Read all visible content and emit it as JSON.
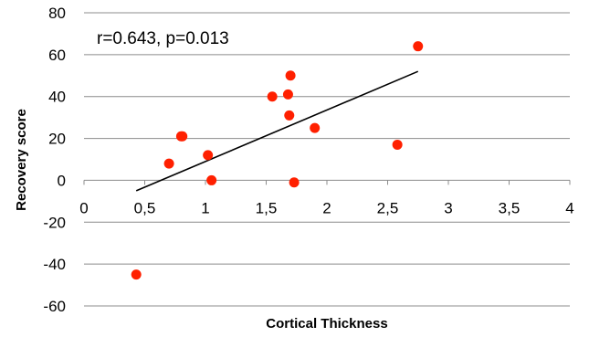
{
  "chart_data": {
    "type": "scatter",
    "title": "",
    "annotation": "r=0.643, p=0.013",
    "xlabel": "Cortical Thickness",
    "ylabel": "Recovery score",
    "xlim": [
      0,
      4
    ],
    "ylim": [
      -60,
      80
    ],
    "x_ticks": [
      0,
      0.5,
      1,
      1.5,
      2,
      2.5,
      3,
      3.5,
      4
    ],
    "x_tick_labels": [
      "0",
      "0,5",
      "1",
      "1,5",
      "2",
      "2,5",
      "3",
      "3,5",
      "4"
    ],
    "y_ticks": [
      -60,
      -40,
      -20,
      0,
      20,
      40,
      60,
      80
    ],
    "y_tick_labels": [
      "-60",
      "-40",
      "-20",
      "0",
      "20",
      "40",
      "60",
      "80"
    ],
    "grid": "horizontal",
    "legend": "none",
    "point_color": "#ff2000",
    "trendline_color": "#000000",
    "points": [
      {
        "x": 0.43,
        "y": -45
      },
      {
        "x": 0.7,
        "y": 8
      },
      {
        "x": 0.8,
        "y": 21
      },
      {
        "x": 0.81,
        "y": 21
      },
      {
        "x": 1.02,
        "y": 12
      },
      {
        "x": 1.05,
        "y": 0
      },
      {
        "x": 1.55,
        "y": 40
      },
      {
        "x": 1.68,
        "y": 41
      },
      {
        "x": 1.69,
        "y": 31
      },
      {
        "x": 1.7,
        "y": 50
      },
      {
        "x": 1.73,
        "y": -1
      },
      {
        "x": 1.9,
        "y": 25
      },
      {
        "x": 2.58,
        "y": 17
      },
      {
        "x": 2.75,
        "y": 64
      }
    ],
    "trendline": {
      "x": [
        0.43,
        2.75
      ],
      "y": [
        -5,
        52
      ]
    }
  }
}
